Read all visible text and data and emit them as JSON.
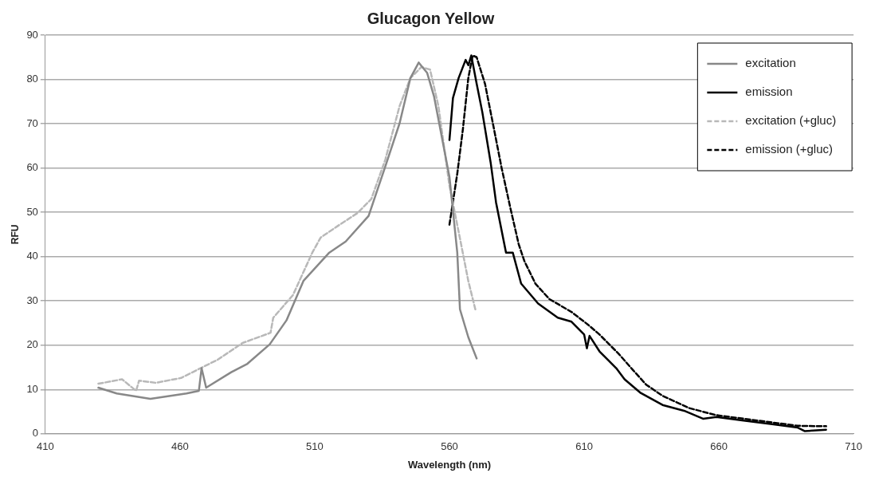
{
  "chart_data": {
    "type": "line",
    "title": "Glucagon Yellow",
    "xlabel": "Wavelength (nm)",
    "ylabel": "RFU",
    "xlim": [
      410,
      710
    ],
    "xticks": [
      410,
      460,
      510,
      560,
      610,
      660,
      710
    ],
    "ylim": [
      0,
      90
    ],
    "yticks": [
      0,
      10,
      20,
      30,
      40,
      50,
      60,
      70,
      80,
      90
    ],
    "grid": "y",
    "legend": "top right",
    "marker": "none",
    "series": [
      {
        "name": "excitation",
        "color": "#888888",
        "line_style": "solid",
        "x": [
          429.7,
          436.5,
          449,
          462.4,
          467,
          468,
          469.7,
          479,
          485,
          493.3,
          499.5,
          505.8,
          515.4,
          521.5,
          530,
          536,
          541.5,
          545.5,
          548.6,
          551.7,
          554.3,
          560,
          562.9,
          563.9,
          567,
          570.1
        ],
        "values": [
          10.4,
          9.1,
          7.9,
          9.1,
          9.7,
          14.8,
          10.4,
          13.9,
          15.8,
          20.2,
          25.6,
          34.5,
          40.9,
          43.4,
          49.2,
          60,
          70.1,
          80.3,
          83.8,
          81.5,
          76.1,
          58,
          40.9,
          28.1,
          21.8,
          17
        ]
      },
      {
        "name": "emission",
        "color": "#000000",
        "line_style": "solid",
        "x": [
          560,
          561.3,
          563.4,
          566,
          567,
          568.1,
          570.1,
          572.2,
          575.3,
          577.3,
          581,
          583.5,
          586.6,
          592.9,
          600.2,
          605.3,
          610,
          611,
          612,
          615.7,
          621.9,
          625,
          631,
          639.1,
          647.1,
          654.1,
          659.1,
          669.2,
          679.2,
          689.3,
          691.8,
          699.8
        ],
        "values": [
          66.3,
          75.8,
          80.3,
          84.4,
          83.2,
          85.4,
          79,
          72.6,
          61.2,
          52.2,
          40.9,
          40.9,
          33.9,
          29.4,
          26.2,
          25.3,
          22.4,
          19.3,
          22.1,
          18.6,
          14.8,
          12.3,
          9.2,
          6.5,
          5.2,
          3.4,
          3.8,
          3,
          2.2,
          1.4,
          0.6,
          0.9
        ]
      },
      {
        "name": "excitation (+gluc)",
        "color": "#b8b8b8",
        "line_style": "dashed",
        "x": [
          429.7,
          438.5,
          443.7,
          444.8,
          451,
          460.4,
          467.6,
          473.9,
          483.2,
          493.6,
          494.6,
          501.9,
          509.1,
          512.2,
          518.5,
          525.8,
          531,
          536.2,
          541.5,
          545.5,
          549.6,
          552.8,
          555.9,
          560,
          563.9,
          567,
          569.6
        ],
        "values": [
          11.3,
          12.3,
          9.7,
          12,
          11.5,
          12.6,
          14.8,
          16.7,
          20.5,
          22.8,
          26.2,
          31.3,
          40.9,
          44.3,
          46.9,
          49.8,
          53,
          61.9,
          74,
          80.3,
          82.8,
          82.2,
          74,
          56,
          44.1,
          34.5,
          28.1
        ]
      },
      {
        "name": "emission (+gluc)",
        "color": "#000000",
        "line_style": "dashed",
        "x": [
          560,
          562.9,
          565,
          567,
          568.6,
          570.1,
          573.2,
          576.3,
          579.4,
          582.6,
          585.7,
          587.8,
          591.9,
          597.1,
          605.3,
          611.5,
          615.7,
          622.9,
          628.1,
          633,
          639,
          649,
          659,
          669.2,
          679.2,
          689.3,
          699.8
        ],
        "values": [
          47.2,
          58.7,
          68.8,
          80.3,
          85.4,
          85,
          79,
          69.5,
          59.9,
          51,
          42.8,
          39,
          33.9,
          30.4,
          27.5,
          24.6,
          22.4,
          18,
          14.4,
          11.1,
          8.6,
          5.8,
          4.2,
          3.4,
          2.6,
          1.8,
          1.7
        ]
      }
    ]
  }
}
